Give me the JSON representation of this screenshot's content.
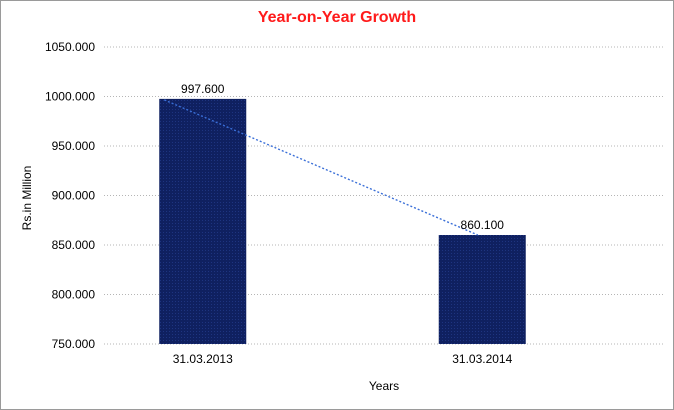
{
  "chart_data": {
    "type": "bar",
    "title": "Year-on-Year Growth",
    "xlabel": "Years",
    "ylabel": "Rs.in Million",
    "categories": [
      "31.03.2013",
      "31.03.2014"
    ],
    "values": [
      997.6,
      860.1
    ],
    "data_labels": [
      "997.600",
      "860.100"
    ],
    "ylim": [
      750,
      1050
    ],
    "yticks": [
      750,
      800,
      850,
      900,
      950,
      1000,
      1050
    ],
    "ytick_labels": [
      "750.000",
      "800.000",
      "850.000",
      "900.000",
      "950.000",
      "1000.000",
      "1050.000"
    ],
    "grid": true,
    "trendline": "linear",
    "bar_color": "#0f2060",
    "trend_color": "#3a6fd8",
    "title_color": "#ff1a1a"
  }
}
